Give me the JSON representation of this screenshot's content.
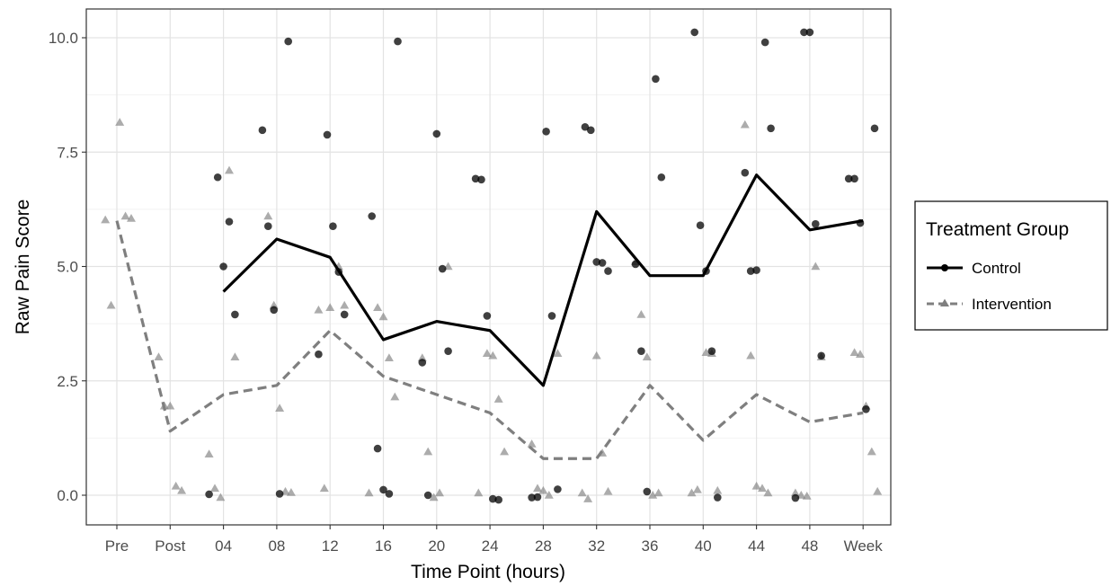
{
  "chart_data": {
    "type": "line",
    "title": "",
    "xlabel": "Time Point (hours)",
    "ylabel": "Raw Pain Score",
    "categories": [
      "Pre",
      "Post",
      "04",
      "08",
      "12",
      "16",
      "20",
      "24",
      "28",
      "32",
      "36",
      "40",
      "44",
      "48",
      "Week"
    ],
    "yticks": [
      0.0,
      2.5,
      5.0,
      7.5,
      10.0
    ],
    "ytick_labels": [
      "0.0",
      "2.5",
      "5.0",
      "7.5",
      "10.0"
    ],
    "ylim": [
      -0.6,
      10.6
    ],
    "grid": true,
    "legend": {
      "title": "Treatment Group",
      "position": "right"
    },
    "series": [
      {
        "name": "Control",
        "line_style": "solid",
        "marker": "circle",
        "color": "#000000",
        "means": [
          null,
          null,
          4.45,
          5.6,
          5.2,
          3.4,
          3.8,
          3.6,
          2.4,
          6.2,
          4.8,
          4.8,
          7.0,
          5.8,
          6.0
        ],
        "points": [
          [
            2,
            6.95
          ],
          [
            2,
            5.0
          ],
          [
            2,
            5.98
          ],
          [
            2,
            3.95
          ],
          [
            2,
            0.02
          ],
          [
            3,
            9.92
          ],
          [
            3,
            7.98
          ],
          [
            3,
            5.88
          ],
          [
            3,
            4.05
          ],
          [
            3,
            0.03
          ],
          [
            4,
            7.88
          ],
          [
            4,
            5.88
          ],
          [
            4,
            4.88
          ],
          [
            4,
            3.95
          ],
          [
            4,
            3.08
          ],
          [
            5,
            9.92
          ],
          [
            5,
            6.1
          ],
          [
            5,
            1.02
          ],
          [
            5,
            0.12
          ],
          [
            5,
            0.03
          ],
          [
            6,
            7.9
          ],
          [
            6,
            4.95
          ],
          [
            6,
            3.15
          ],
          [
            6,
            2.9
          ],
          [
            6,
            0.0
          ],
          [
            7,
            6.92
          ],
          [
            7,
            6.9
          ],
          [
            7,
            3.92
          ],
          [
            7,
            -0.08
          ],
          [
            7,
            -0.1
          ],
          [
            8,
            7.95
          ],
          [
            8,
            3.92
          ],
          [
            8,
            0.13
          ],
          [
            8,
            -0.05
          ],
          [
            8,
            -0.04
          ],
          [
            9,
            8.05
          ],
          [
            9,
            7.98
          ],
          [
            9,
            5.1
          ],
          [
            9,
            5.08
          ],
          [
            9,
            4.9
          ],
          [
            10,
            9.1
          ],
          [
            10,
            6.95
          ],
          [
            10,
            5.05
          ],
          [
            10,
            3.15
          ],
          [
            10,
            0.08
          ],
          [
            11,
            10.12
          ],
          [
            11,
            5.9
          ],
          [
            11,
            4.9
          ],
          [
            11,
            3.15
          ],
          [
            11,
            -0.05
          ],
          [
            12,
            9.9
          ],
          [
            12,
            8.02
          ],
          [
            12,
            7.05
          ],
          [
            12,
            4.9
          ],
          [
            12,
            4.92
          ],
          [
            13,
            10.12
          ],
          [
            13,
            10.12
          ],
          [
            13,
            5.93
          ],
          [
            13,
            3.05
          ],
          [
            13,
            -0.06
          ],
          [
            14,
            8.02
          ],
          [
            14,
            6.92
          ],
          [
            14,
            6.92
          ],
          [
            14,
            5.95
          ],
          [
            14,
            1.88
          ]
        ]
      },
      {
        "name": "Intervention",
        "line_style": "dashed",
        "marker": "triangle",
        "color": "#7f7f7f",
        "means": [
          6.0,
          1.4,
          2.2,
          2.4,
          3.6,
          2.6,
          2.2,
          1.8,
          0.8,
          0.8,
          2.4,
          1.2,
          2.2,
          1.6,
          1.8
        ],
        "points": [
          [
            0,
            8.15
          ],
          [
            0,
            6.1
          ],
          [
            0,
            6.05
          ],
          [
            0,
            6.02
          ],
          [
            0,
            4.15
          ],
          [
            1,
            3.02
          ],
          [
            1,
            1.95
          ],
          [
            1,
            1.95
          ],
          [
            1,
            0.2
          ],
          [
            1,
            0.1
          ],
          [
            2,
            7.1
          ],
          [
            2,
            3.02
          ],
          [
            2,
            0.9
          ],
          [
            2,
            0.15
          ],
          [
            2,
            -0.05
          ],
          [
            3,
            6.1
          ],
          [
            3,
            4.15
          ],
          [
            3,
            1.9
          ],
          [
            3,
            0.08
          ],
          [
            3,
            0.06
          ],
          [
            4,
            5.0
          ],
          [
            4,
            4.15
          ],
          [
            4,
            4.05
          ],
          [
            4,
            0.15
          ],
          [
            4,
            4.1
          ],
          [
            5,
            4.1
          ],
          [
            5,
            3.9
          ],
          [
            5,
            3.0
          ],
          [
            5,
            2.15
          ],
          [
            5,
            0.05
          ],
          [
            6,
            5.0
          ],
          [
            6,
            3.0
          ],
          [
            6,
            0.95
          ],
          [
            6,
            -0.05
          ],
          [
            6,
            0.05
          ],
          [
            7,
            3.1
          ],
          [
            7,
            3.05
          ],
          [
            7,
            2.1
          ],
          [
            7,
            0.95
          ],
          [
            7,
            0.05
          ],
          [
            8,
            3.1
          ],
          [
            8,
            1.12
          ],
          [
            8,
            0.15
          ],
          [
            8,
            0.1
          ],
          [
            8,
            0.0
          ],
          [
            9,
            3.05
          ],
          [
            9,
            0.92
          ],
          [
            9,
            0.08
          ],
          [
            9,
            0.05
          ],
          [
            9,
            -0.08
          ],
          [
            10,
            5.1
          ],
          [
            10,
            3.95
          ],
          [
            10,
            3.02
          ],
          [
            10,
            0.0
          ],
          [
            10,
            0.05
          ],
          [
            11,
            3.12
          ],
          [
            11,
            3.1
          ],
          [
            11,
            0.1
          ],
          [
            11,
            0.05
          ],
          [
            11,
            0.12
          ],
          [
            12,
            8.1
          ],
          [
            12,
            3.05
          ],
          [
            12,
            0.2
          ],
          [
            12,
            0.15
          ],
          [
            12,
            0.05
          ],
          [
            13,
            5.0
          ],
          [
            13,
            3.02
          ],
          [
            13,
            0.05
          ],
          [
            13,
            0.0
          ],
          [
            13,
            -0.02
          ],
          [
            14,
            3.12
          ],
          [
            14,
            3.08
          ],
          [
            14,
            1.95
          ],
          [
            14,
            0.95
          ],
          [
            14,
            0.08
          ]
        ]
      }
    ]
  }
}
